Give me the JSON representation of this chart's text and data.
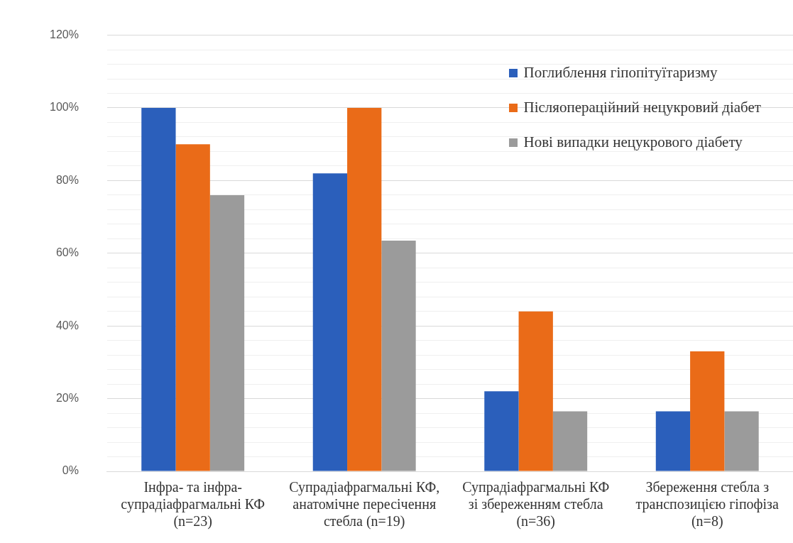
{
  "chart_data": {
    "type": "bar",
    "categories": [
      "Інфра- та інфра-\nсупрадіафрагмальні КФ\n(n=23)",
      "Супрадіафрагмальні КФ,\nанатомічне пересічення\nстебла (n=19)",
      "Супрадіафрагмальні КФ\nзі збереженням стебла\n(n=36)",
      "Збереження стебла з\nтранспозицією гіпофіза\n(n=8)"
    ],
    "series": [
      {
        "name": "Поглиблення гіпопітуїтаризму",
        "color": "#2b5fbb",
        "values": [
          100,
          82,
          22,
          16.5
        ]
      },
      {
        "name": "Післяопераційний нецукровий діабет",
        "color": "#ea6b18",
        "values": [
          90,
          100,
          44,
          33
        ]
      },
      {
        "name": "Нові випадки нецукрового діабету",
        "color": "#9b9b9b",
        "values": [
          76,
          63.5,
          16.5,
          16.5
        ]
      }
    ],
    "ylim": [
      0,
      120
    ],
    "yticks": [
      "0%",
      {
        "value": 4,
        "label": null
      },
      {
        "value": 8,
        "label": null
      },
      {
        "value": 12,
        "label": null
      },
      {
        "value": 16,
        "label": null
      },
      {
        "value": 20,
        "label": "20%"
      },
      {
        "value": 24,
        "label": null
      },
      {
        "value": 28,
        "label": null
      },
      {
        "value": 32,
        "label": null
      },
      {
        "value": 36,
        "label": null
      },
      {
        "value": 40,
        "label": "40%"
      },
      {
        "value": 44,
        "label": null
      },
      {
        "value": 48,
        "label": null
      },
      {
        "value": 52,
        "label": null
      },
      {
        "value": 56,
        "label": null
      },
      {
        "value": 60,
        "label": "60%"
      },
      {
        "value": 64,
        "label": null
      },
      {
        "value": 68,
        "label": null
      },
      {
        "value": 72,
        "label": null
      },
      {
        "value": 76,
        "label": null
      },
      {
        "value": 80,
        "label": "80%"
      },
      {
        "value": 84,
        "label": null
      },
      {
        "value": 88,
        "label": null
      },
      {
        "value": 92,
        "label": null
      },
      {
        "value": 96,
        "label": null
      },
      {
        "value": 100,
        "label": "100%"
      },
      {
        "value": 104,
        "label": null
      },
      {
        "value": 108,
        "label": null
      },
      {
        "value": 112,
        "label": null
      },
      {
        "value": 116,
        "label": null
      },
      {
        "value": 120,
        "label": "120%"
      }
    ],
    "grid": "y",
    "legend": "top right"
  }
}
